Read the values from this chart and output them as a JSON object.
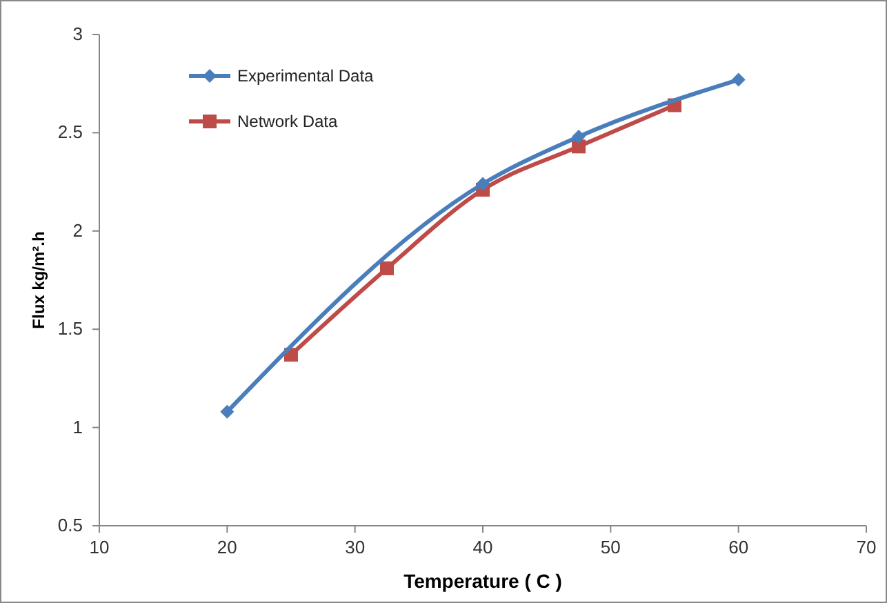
{
  "chart_data": {
    "type": "line",
    "xlabel": "Temperature ( C )",
    "ylabel": "Flux kg/m².h",
    "xlim": [
      10,
      70
    ],
    "xticks": [
      10,
      20,
      30,
      40,
      50,
      60,
      70
    ],
    "ylim": [
      0.5,
      3
    ],
    "yticks": [
      0.5,
      1,
      1.5,
      2,
      2.5,
      3
    ],
    "grid": false,
    "legend": "top left",
    "series": [
      {
        "name": "Experimental Data",
        "color": "#4a7ebb",
        "marker": "diamond",
        "x": [
          20,
          40,
          47.5,
          60
        ],
        "values": [
          1.08,
          2.24,
          2.48,
          2.77
        ]
      },
      {
        "name": "Network Data",
        "color": "#be4b48",
        "marker": "square",
        "x": [
          25,
          32.5,
          40,
          47.5,
          55
        ],
        "values": [
          1.37,
          1.81,
          2.21,
          2.43,
          2.64
        ]
      }
    ]
  }
}
